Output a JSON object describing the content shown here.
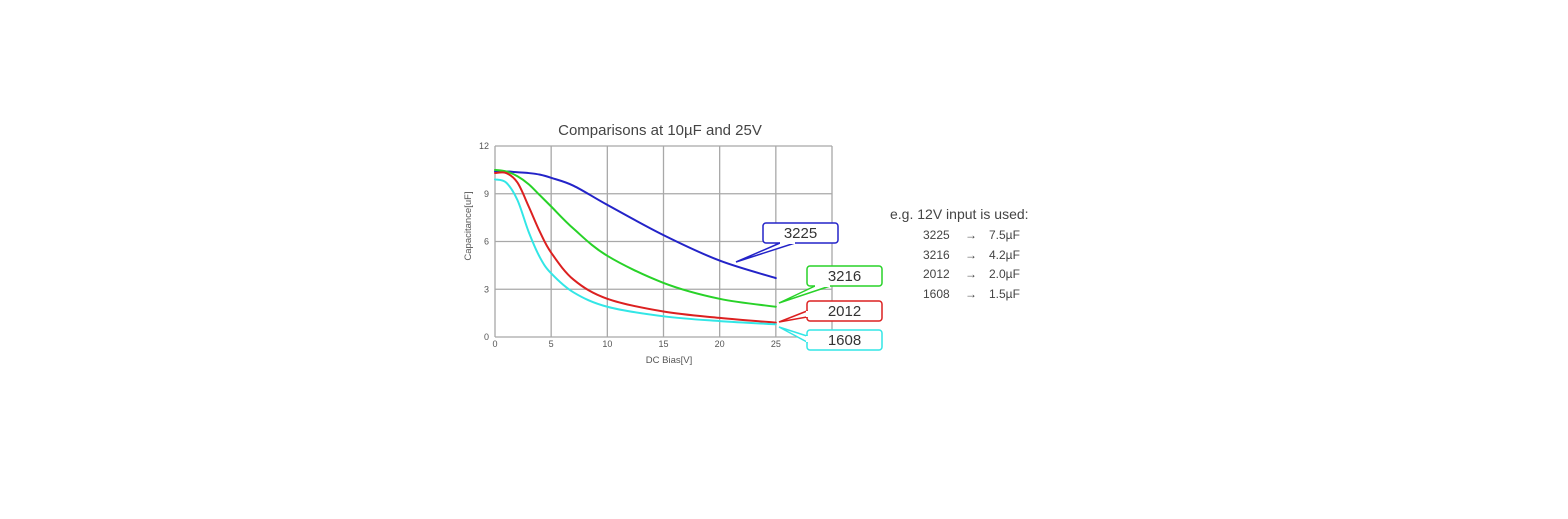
{
  "chart_data": {
    "type": "line",
    "title": "Comparisons at 10µF and 25V",
    "xlabel": "DC Bias[V]",
    "ylabel": "Capacitance[uF]",
    "xlim": [
      0,
      30
    ],
    "ylim": [
      0,
      12
    ],
    "xticks": [
      0,
      5,
      10,
      15,
      20,
      25
    ],
    "yticks": [
      0,
      3,
      6,
      9,
      12
    ],
    "grid": true,
    "legend_position": "callouts at right end of curves",
    "x": [
      0,
      1,
      2,
      3,
      4,
      5,
      7,
      10,
      15,
      20,
      25
    ],
    "series": [
      {
        "name": "3225",
        "color": "#2323c8",
        "values": [
          10.4,
          10.4,
          10.35,
          10.3,
          10.2,
          10.0,
          9.5,
          8.3,
          6.4,
          4.8,
          3.7
        ]
      },
      {
        "name": "3216",
        "color": "#28d228",
        "values": [
          10.5,
          10.4,
          10.1,
          9.6,
          8.9,
          8.2,
          6.8,
          5.1,
          3.4,
          2.4,
          1.9
        ]
      },
      {
        "name": "2012",
        "color": "#dc2020",
        "values": [
          10.3,
          10.3,
          9.7,
          8.2,
          6.6,
          5.3,
          3.6,
          2.4,
          1.6,
          1.2,
          0.9
        ]
      },
      {
        "name": "1608",
        "color": "#32e6e6",
        "values": [
          9.9,
          9.7,
          8.6,
          6.6,
          5.0,
          4.0,
          2.8,
          1.9,
          1.3,
          1.0,
          0.8
        ]
      }
    ]
  },
  "note": {
    "title": "e.g. 12V input is used:",
    "rows": [
      {
        "size": "3225",
        "arrow": "→",
        "value": "7.5µF"
      },
      {
        "size": "3216",
        "arrow": "→",
        "value": "4.2µF"
      },
      {
        "size": "2012",
        "arrow": "→",
        "value": "2.0µF"
      },
      {
        "size": "1608",
        "arrow": "→",
        "value": "1.5µF"
      }
    ]
  }
}
